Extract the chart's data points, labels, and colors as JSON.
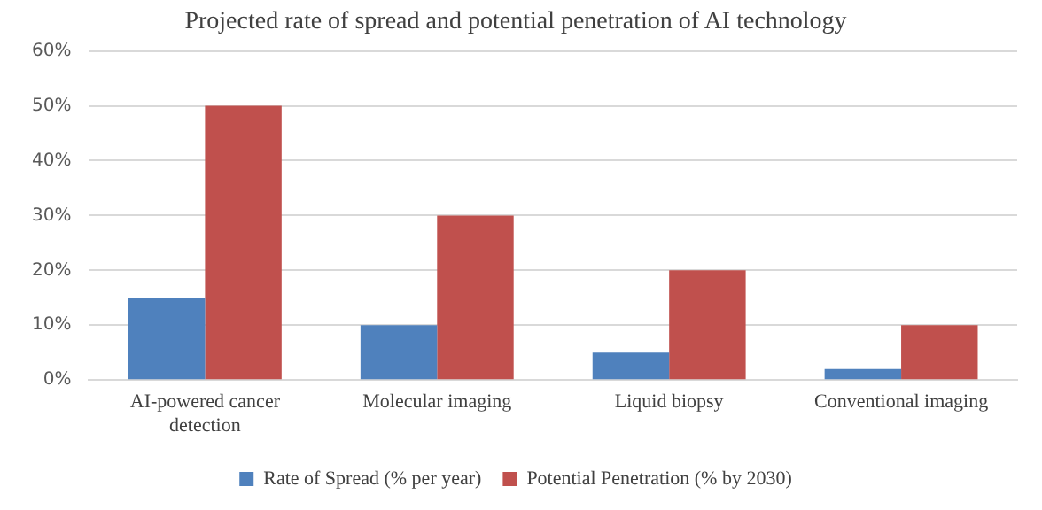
{
  "chart_data": {
    "type": "bar",
    "title": "Projected rate of spread and potential penetration of AI technology",
    "categories": [
      "AI-powered cancer detection",
      "Molecular imaging",
      "Liquid biopsy",
      "Conventional imaging"
    ],
    "series": [
      {
        "name": "Rate of Spread (% per year)",
        "color": "#4f81bd",
        "values": [
          15,
          10,
          5,
          2
        ]
      },
      {
        "name": "Potential Penetration (% by 2030)",
        "color": "#c0504d",
        "values": [
          50,
          30,
          20,
          10
        ]
      }
    ],
    "ylim": [
      0,
      60
    ],
    "yticks": [
      {
        "value": 0,
        "label": "0%"
      },
      {
        "value": 10,
        "label": "10%"
      },
      {
        "value": 20,
        "label": "20%"
      },
      {
        "value": 30,
        "label": "30%"
      },
      {
        "value": 40,
        "label": "40%"
      },
      {
        "value": 50,
        "label": "50%"
      },
      {
        "value": 60,
        "label": "60%"
      }
    ],
    "grid": "y",
    "legend": "bottom"
  }
}
